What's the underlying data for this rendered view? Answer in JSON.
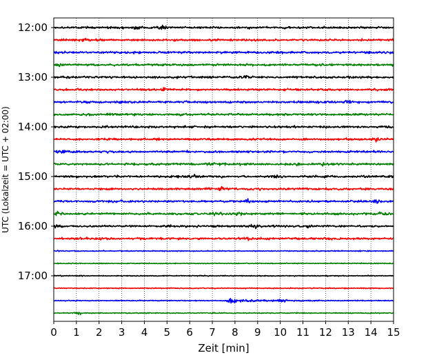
{
  "chart_data": {
    "type": "line",
    "title": "",
    "xlabel": "Zeit  [min]",
    "ylabel": "UTC (Lokalzeit = UTC + 02:00)",
    "xlim": [
      0,
      15
    ],
    "x_ticks": [
      0,
      1,
      2,
      3,
      4,
      5,
      6,
      7,
      8,
      9,
      10,
      11,
      12,
      13,
      14,
      15
    ],
    "x_tick_labels": [
      "0",
      "1",
      "2",
      "3",
      "4",
      "5",
      "6",
      "7",
      "8",
      "9",
      "10",
      "11",
      "12",
      "13",
      "14",
      "15"
    ],
    "y_tick_labels": [
      "12:00",
      "13:00",
      "14:00",
      "15:00",
      "16:00",
      "17:00"
    ],
    "grid": "vertical dotted at each minute",
    "trace_colors": [
      "#000000",
      "#ff0000",
      "#0000ff",
      "#008000"
    ],
    "traces": [
      {
        "start": "12:00",
        "color": "#000000",
        "amplitude": "moderate",
        "bursts_min": [
          3.7,
          4.8
        ]
      },
      {
        "start": "12:15",
        "color": "#ff0000",
        "amplitude": "moderate",
        "bursts_min": [
          1.3
        ]
      },
      {
        "start": "12:30",
        "color": "#0000ff",
        "amplitude": "moderate",
        "bursts_min": []
      },
      {
        "start": "12:45",
        "color": "#008000",
        "amplitude": "moderate",
        "bursts_min": [
          0.2
        ]
      },
      {
        "start": "13:00",
        "color": "#000000",
        "amplitude": "moderate",
        "bursts_min": [
          8.5
        ]
      },
      {
        "start": "13:15",
        "color": "#ff0000",
        "amplitude": "moderate",
        "bursts_min": [
          4.9
        ]
      },
      {
        "start": "13:30",
        "color": "#0000ff",
        "amplitude": "moderate",
        "bursts_min": [
          3.0,
          13.0
        ]
      },
      {
        "start": "13:45",
        "color": "#008000",
        "amplitude": "moderate",
        "bursts_min": []
      },
      {
        "start": "14:00",
        "color": "#000000",
        "amplitude": "moderate",
        "bursts_min": [
          3.5
        ]
      },
      {
        "start": "14:15",
        "color": "#ff0000",
        "amplitude": "moderate",
        "bursts_min": [
          14.3
        ]
      },
      {
        "start": "14:30",
        "color": "#0000ff",
        "amplitude": "moderate",
        "bursts_min": [
          0.3
        ]
      },
      {
        "start": "14:45",
        "color": "#008000",
        "amplitude": "moderate",
        "bursts_min": [
          6.9,
          10.8,
          11.9
        ]
      },
      {
        "start": "15:00",
        "color": "#000000",
        "amplitude": "moderate",
        "bursts_min": [
          6.2,
          9.8
        ]
      },
      {
        "start": "15:15",
        "color": "#ff0000",
        "amplitude": "moderate",
        "bursts_min": [
          7.4
        ]
      },
      {
        "start": "15:30",
        "color": "#0000ff",
        "amplitude": "moderate",
        "bursts_min": [
          8.6,
          14.2
        ]
      },
      {
        "start": "15:45",
        "color": "#008000",
        "amplitude": "moderate",
        "bursts_min": [
          0.2,
          7.1,
          8.1,
          14.5
        ]
      },
      {
        "start": "16:00",
        "color": "#000000",
        "amplitude": "moderate",
        "bursts_min": [
          0.2,
          8.9,
          11.3
        ]
      },
      {
        "start": "16:15",
        "color": "#ff0000",
        "amplitude": "moderate",
        "bursts_min": [
          2.1,
          8.7
        ]
      },
      {
        "start": "16:30",
        "color": "#0000ff",
        "amplitude": "quiet",
        "bursts_min": []
      },
      {
        "start": "16:45",
        "color": "#008000",
        "amplitude": "quiet",
        "bursts_min": []
      },
      {
        "start": "17:00",
        "color": "#000000",
        "amplitude": "quiet",
        "bursts_min": []
      },
      {
        "start": "17:15",
        "color": "#ff0000",
        "amplitude": "quiet",
        "bursts_min": []
      },
      {
        "start": "17:30",
        "color": "#0000ff",
        "amplitude": "quiet",
        "bursts_min": [
          7.8,
          10.1
        ],
        "event_window_min": [
          7.7,
          11.5
        ]
      },
      {
        "start": "17:45",
        "color": "#008000",
        "amplitude": "quiet",
        "bursts_min": [
          1.1
        ]
      }
    ]
  }
}
